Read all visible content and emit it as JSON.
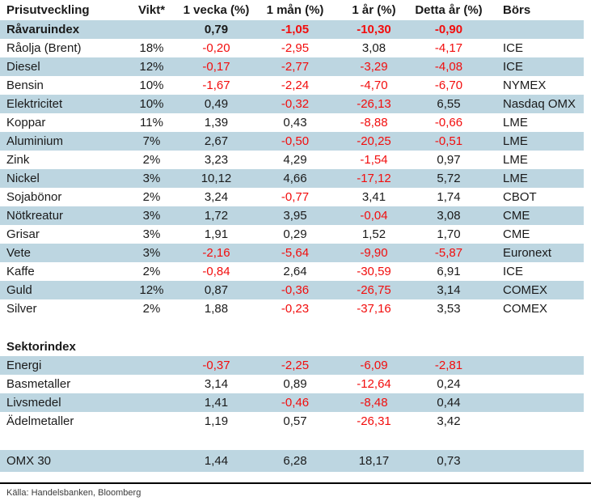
{
  "colors": {
    "row_shaded": "#bdd6e1",
    "negative": "#f20d0d",
    "text": "#1a1a1a"
  },
  "table": {
    "columns": [
      "Prisutveckling",
      "Vikt*",
      "1 vecka (%)",
      "1 mån (%)",
      "1 år (%)",
      "Detta år (%)",
      "Börs"
    ],
    "rows": [
      {
        "type": "data",
        "bold": true,
        "shaded": true,
        "name": "Råvaruindex",
        "vikt": "",
        "w1": "0,79",
        "m1": "-1,05",
        "y1": "-10,30",
        "ytd": "-0,90",
        "bors": ""
      },
      {
        "type": "data",
        "bold": false,
        "shaded": false,
        "name": "Råolja (Brent)",
        "vikt": "18%",
        "w1": "-0,20",
        "m1": "-2,95",
        "y1": "3,08",
        "ytd": "-4,17",
        "bors": "ICE"
      },
      {
        "type": "data",
        "bold": false,
        "shaded": true,
        "name": "Diesel",
        "vikt": "12%",
        "w1": "-0,17",
        "m1": "-2,77",
        "y1": "-3,29",
        "ytd": "-4,08",
        "bors": "ICE"
      },
      {
        "type": "data",
        "bold": false,
        "shaded": false,
        "name": "Bensin",
        "vikt": "10%",
        "w1": "-1,67",
        "m1": "-2,24",
        "y1": "-4,70",
        "ytd": "-6,70",
        "bors": "NYMEX"
      },
      {
        "type": "data",
        "bold": false,
        "shaded": true,
        "name": "Elektricitet",
        "vikt": "10%",
        "w1": "0,49",
        "m1": "-0,32",
        "y1": "-26,13",
        "ytd": "6,55",
        "bors": "Nasdaq OMX"
      },
      {
        "type": "data",
        "bold": false,
        "shaded": false,
        "name": "Koppar",
        "vikt": "11%",
        "w1": "1,39",
        "m1": "0,43",
        "y1": "-8,88",
        "ytd": "-0,66",
        "bors": "LME"
      },
      {
        "type": "data",
        "bold": false,
        "shaded": true,
        "name": "Aluminium",
        "vikt": "7%",
        "w1": "2,67",
        "m1": "-0,50",
        "y1": "-20,25",
        "ytd": "-0,51",
        "bors": "LME"
      },
      {
        "type": "data",
        "bold": false,
        "shaded": false,
        "name": "Zink",
        "vikt": "2%",
        "w1": "3,23",
        "m1": "4,29",
        "y1": "-1,54",
        "ytd": "0,97",
        "bors": "LME"
      },
      {
        "type": "data",
        "bold": false,
        "shaded": true,
        "name": "Nickel",
        "vikt": "3%",
        "w1": "10,12",
        "m1": "4,66",
        "y1": "-17,12",
        "ytd": "5,72",
        "bors": "LME"
      },
      {
        "type": "data",
        "bold": false,
        "shaded": false,
        "name": "Sojabönor",
        "vikt": "2%",
        "w1": "3,24",
        "m1": "-0,77",
        "y1": "3,41",
        "ytd": "1,74",
        "bors": "CBOT"
      },
      {
        "type": "data",
        "bold": false,
        "shaded": true,
        "name": "Nötkreatur",
        "vikt": "3%",
        "w1": "1,72",
        "m1": "3,95",
        "y1": "-0,04",
        "ytd": "3,08",
        "bors": "CME"
      },
      {
        "type": "data",
        "bold": false,
        "shaded": false,
        "name": "Grisar",
        "vikt": "3%",
        "w1": "1,91",
        "m1": "0,29",
        "y1": "1,52",
        "ytd": "1,70",
        "bors": "CME"
      },
      {
        "type": "data",
        "bold": false,
        "shaded": true,
        "name": "Vete",
        "vikt": "3%",
        "w1": "-2,16",
        "m1": "-5,64",
        "y1": "-9,90",
        "ytd": "-5,87",
        "bors": "Euronext"
      },
      {
        "type": "data",
        "bold": false,
        "shaded": false,
        "name": "Kaffe",
        "vikt": "2%",
        "w1": "-0,84",
        "m1": "2,64",
        "y1": "-30,59",
        "ytd": "6,91",
        "bors": "ICE"
      },
      {
        "type": "data",
        "bold": false,
        "shaded": true,
        "name": "Guld",
        "vikt": "12%",
        "w1": "0,87",
        "m1": "-0,36",
        "y1": "-26,75",
        "ytd": "3,14",
        "bors": "COMEX"
      },
      {
        "type": "data",
        "bold": false,
        "shaded": false,
        "name": "Silver",
        "vikt": "2%",
        "w1": "1,88",
        "m1": "-0,23",
        "y1": "-37,16",
        "ytd": "3,53",
        "bors": "COMEX"
      },
      {
        "type": "spacer"
      },
      {
        "type": "section",
        "name": "Sektorindex"
      },
      {
        "type": "data",
        "bold": false,
        "shaded": true,
        "name": "Energi",
        "vikt": "",
        "w1": "-0,37",
        "m1": "-2,25",
        "y1": "-6,09",
        "ytd": "-2,81",
        "bors": ""
      },
      {
        "type": "data",
        "bold": false,
        "shaded": false,
        "name": "Basmetaller",
        "vikt": "",
        "w1": "3,14",
        "m1": "0,89",
        "y1": "-12,64",
        "ytd": "0,24",
        "bors": ""
      },
      {
        "type": "data",
        "bold": false,
        "shaded": true,
        "name": "Livsmedel",
        "vikt": "",
        "w1": "1,41",
        "m1": "-0,46",
        "y1": "-8,48",
        "ytd": "0,44",
        "bors": ""
      },
      {
        "type": "data",
        "bold": false,
        "shaded": false,
        "name": "Ädelmetaller",
        "vikt": "",
        "w1": "1,19",
        "m1": "0,57",
        "y1": "-26,31",
        "ytd": "3,42",
        "bors": ""
      },
      {
        "type": "spacer"
      },
      {
        "type": "data",
        "bold": false,
        "shaded": true,
        "tall": true,
        "name": "OMX 30",
        "vikt": "",
        "w1": "1,44",
        "m1": "6,28",
        "y1": "18,17",
        "ytd": "0,73",
        "bors": ""
      }
    ]
  },
  "footer": {
    "source": "Källa: Handelsbanken, Bloomberg"
  }
}
